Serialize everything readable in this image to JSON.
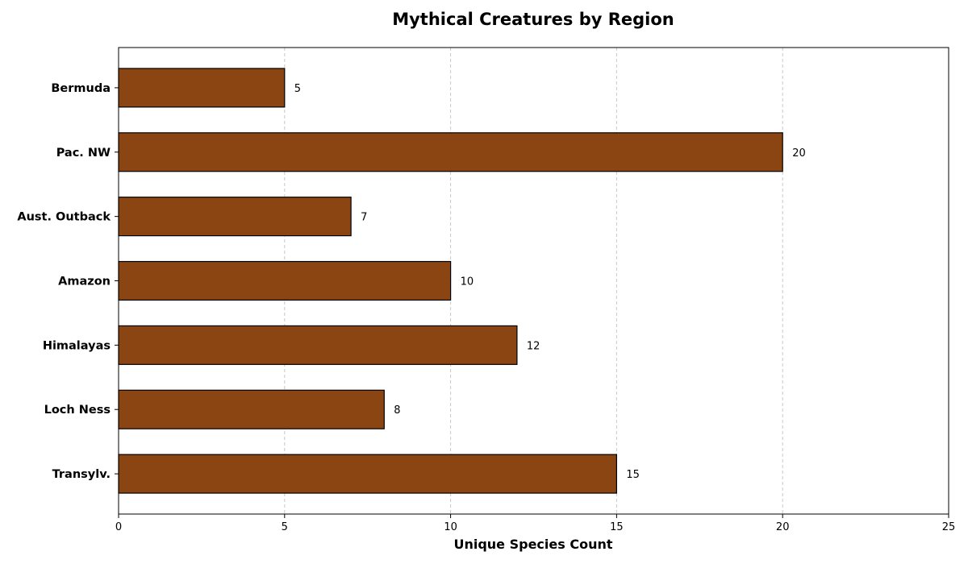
{
  "chart_data": {
    "type": "bar",
    "orientation": "horizontal",
    "title": "Mythical Creatures by Region",
    "xlabel": "Unique Species Count",
    "ylabel": "",
    "categories": [
      "Transylv.",
      "Loch Ness",
      "Himalayas",
      "Amazon",
      "Aust. Outback",
      "Pac. NW",
      "Bermuda"
    ],
    "values": [
      15,
      8,
      12,
      10,
      7,
      20,
      5
    ],
    "xlim": [
      0,
      25
    ],
    "xticks": [
      0,
      5,
      10,
      15,
      20,
      25
    ],
    "grid": "x-dashed",
    "data_labels": true,
    "bar_color": "#8B4513",
    "edge_color": "#000000",
    "grid_color": "#c8c8c8"
  }
}
